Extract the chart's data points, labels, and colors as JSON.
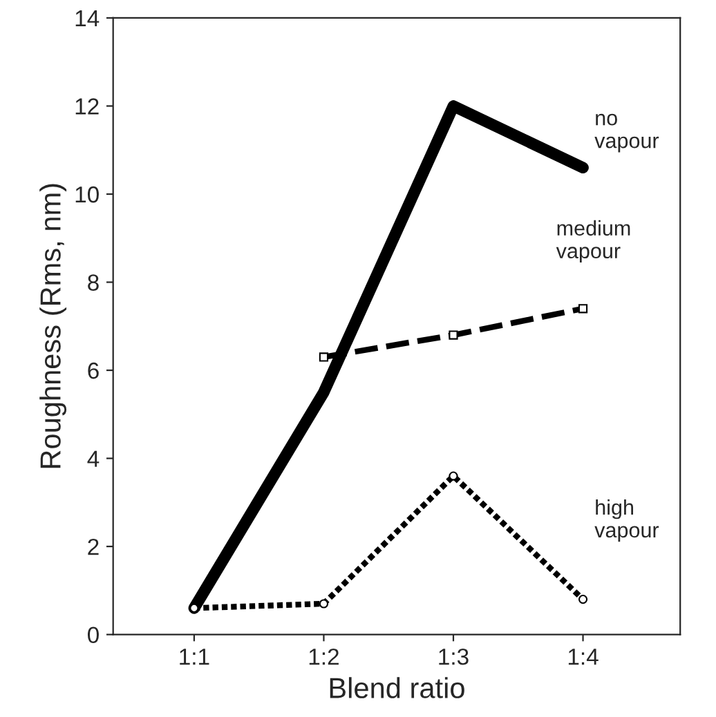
{
  "chart_data": {
    "type": "line",
    "xlabel": "Blend ratio",
    "ylabel": "Roughness (Rms, nm)",
    "categories": [
      "1:1",
      "1:2",
      "1:3",
      "1:4"
    ],
    "ylim": [
      0,
      14
    ],
    "yticks": [
      0,
      2,
      4,
      6,
      8,
      10,
      12,
      14
    ],
    "grid": false,
    "legend": false,
    "series": [
      {
        "name": "no vapour",
        "color": "#000000",
        "values": [
          0.6,
          5.5,
          12.0,
          10.6
        ],
        "line_style": "solid",
        "marker": "none"
      },
      {
        "name": "medium vapour",
        "color": "#000000",
        "values": [
          null,
          6.3,
          6.8,
          7.4
        ],
        "line_style": "dashed",
        "marker": "square"
      },
      {
        "name": "high vapour",
        "color": "#000000",
        "values": [
          0.6,
          0.7,
          3.6,
          0.8
        ],
        "line_style": "dotted",
        "marker": "circle"
      }
    ]
  }
}
